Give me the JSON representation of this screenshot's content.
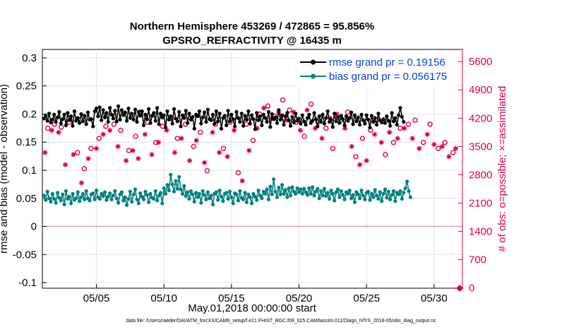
{
  "chart_data": {
    "type": "line",
    "title_line1": "Northern Hemisphere 453269 / 472865 = 95.856%",
    "title_line2": "GPSRO_REFRACTIVITY @ 16435 m",
    "xlabel": "May.01,2018 00:00:00 start",
    "ylabel_left": "rmse and bias (model - observation)",
    "ylabel_right": "# of obs: o=possible; ×=assimilated",
    "footer": "data file: /Users/raeder/DAI/ATM_forcXX/CAM6_setup/f.e21.FHIST_BGC.f09_025.CAM6assim.011/Diags_NTrS_2018-05/obs_diag_output.nc",
    "x_range_days": [
      1.0,
      32.1
    ],
    "x_ticks": [
      {
        "day": 5,
        "label": "05/05"
      },
      {
        "day": 10,
        "label": "05/10"
      },
      {
        "day": 15,
        "label": "05/15"
      },
      {
        "day": 20,
        "label": "05/20"
      },
      {
        "day": 25,
        "label": "05/25"
      },
      {
        "day": 30,
        "label": "05/30"
      }
    ],
    "ylim_left": [
      -0.11,
      0.315
    ],
    "y_ticks_left": [
      "0.3",
      "0.25",
      "0.2",
      "0.15",
      "0.1",
      "0.05",
      "0",
      "-0.05",
      "-0.1"
    ],
    "ylim_right": [
      -5,
      5900
    ],
    "y_ticks_right": [
      "5600",
      "4900",
      "4200",
      "3500",
      "2800",
      "2100",
      "1400",
      "700",
      "0"
    ],
    "legend": [
      {
        "name": "rmse grand pr = 0.19156",
        "color": "#000000"
      },
      {
        "name": "bias grand pr = 0.056175",
        "color": "#008080"
      }
    ],
    "series": [
      {
        "name": "rmse",
        "color": "#000000",
        "values": [
          0.192,
          0.197,
          0.188,
          0.201,
          0.185,
          0.19,
          0.199,
          0.186,
          0.194,
          0.204,
          0.183,
          0.191,
          0.199,
          0.18,
          0.202,
          0.189,
          0.196,
          0.179,
          0.205,
          0.188,
          0.193,
          0.184,
          0.2,
          0.187,
          0.197,
          0.182,
          0.203,
          0.19,
          0.191,
          0.178,
          0.205,
          0.21,
          0.196,
          0.212,
          0.189,
          0.207,
          0.194,
          0.202,
          0.186,
          0.211,
          0.199,
          0.192,
          0.206,
          0.187,
          0.214,
          0.19,
          0.207,
          0.198,
          0.203,
          0.188,
          0.21,
          0.193,
          0.201,
          0.19,
          0.208,
          0.186,
          0.204,
          0.197,
          0.205,
          0.18,
          0.199,
          0.191,
          0.209,
          0.184,
          0.197,
          0.202,
          0.188,
          0.211,
          0.182,
          0.201,
          0.194,
          0.198,
          0.176,
          0.205,
          0.19,
          0.196,
          0.183,
          0.209,
          0.192,
          0.187,
          0.204,
          0.178,
          0.198,
          0.193,
          0.206,
          0.184,
          0.201,
          0.19,
          0.195,
          0.174,
          0.199,
          0.196,
          0.205,
          0.183,
          0.194,
          0.203,
          0.186,
          0.208,
          0.191,
          0.189,
          0.199,
          0.183,
          0.205,
          0.187,
          0.201,
          0.174,
          0.193,
          0.197,
          0.18,
          0.206,
          0.187,
          0.199,
          0.191,
          0.178,
          0.204,
          0.193,
          0.186,
          0.201,
          0.179,
          0.197,
          0.19,
          0.205,
          0.183,
          0.198,
          0.191,
          0.173,
          0.202,
          0.189,
          0.196,
          0.18,
          0.199,
          0.193,
          0.186,
          0.204,
          0.177,
          0.2,
          0.191,
          0.194,
          0.184,
          0.207,
          0.19,
          0.198,
          0.181,
          0.196,
          0.202,
          0.189,
          0.179,
          0.195,
          0.185,
          0.201,
          0.188,
          0.192,
          0.183,
          0.198,
          0.187,
          0.181,
          0.193,
          0.199,
          0.184,
          0.188,
          0.202,
          0.191,
          0.178,
          0.196,
          0.186,
          0.199,
          0.183,
          0.193,
          0.205,
          0.186,
          0.19,
          0.177,
          0.201,
          0.187,
          0.195,
          0.184,
          0.197,
          0.191,
          0.18,
          0.196,
          0.188,
          0.193,
          0.203,
          0.182,
          0.198,
          0.187,
          0.194,
          0.181,
          0.199,
          0.189,
          0.183,
          0.198,
          0.19,
          0.176,
          0.197,
          0.186,
          0.193,
          0.181,
          0.201,
          0.189,
          0.185,
          0.191,
          0.184,
          0.196,
          0.188,
          0.179,
          0.202,
          0.187,
          0.193,
          0.181,
          0.198,
          0.211,
          0.195,
          0.186
        ]
      },
      {
        "name": "bias",
        "color": "#008080",
        "values": [
          0.055,
          0.047,
          0.062,
          0.05,
          0.044,
          0.058,
          0.049,
          0.042,
          0.06,
          0.051,
          0.046,
          0.057,
          0.039,
          0.063,
          0.049,
          0.053,
          0.041,
          0.058,
          0.047,
          0.05,
          0.061,
          0.045,
          0.052,
          0.058,
          0.048,
          0.063,
          0.05,
          0.046,
          0.057,
          0.059,
          0.048,
          0.064,
          0.052,
          0.049,
          0.058,
          0.054,
          0.061,
          0.047,
          0.053,
          0.059,
          0.048,
          0.055,
          0.063,
          0.05,
          0.042,
          0.057,
          0.061,
          0.046,
          0.052,
          0.038,
          0.049,
          0.062,
          0.044,
          0.057,
          0.066,
          0.048,
          0.041,
          0.059,
          0.053,
          0.048,
          0.062,
          0.056,
          0.043,
          0.058,
          0.051,
          0.049,
          0.063,
          0.046,
          0.055,
          0.06,
          0.041,
          0.068,
          0.058,
          0.074,
          0.064,
          0.092,
          0.075,
          0.062,
          0.081,
          0.067,
          0.088,
          0.066,
          0.058,
          0.072,
          0.054,
          0.061,
          0.049,
          0.063,
          0.057,
          0.044,
          0.06,
          0.052,
          0.058,
          0.042,
          0.063,
          0.056,
          0.048,
          0.061,
          0.05,
          0.055,
          0.039,
          0.058,
          0.061,
          0.047,
          0.064,
          0.053,
          0.045,
          0.058,
          0.06,
          0.049,
          0.062,
          0.052,
          0.041,
          0.059,
          0.057,
          0.046,
          0.063,
          0.051,
          0.048,
          0.06,
          0.043,
          0.057,
          0.052,
          0.041,
          0.058,
          0.053,
          0.047,
          0.064,
          0.055,
          0.05,
          0.062,
          0.058,
          0.066,
          0.048,
          0.071,
          0.057,
          0.084,
          0.062,
          0.052,
          0.069,
          0.057,
          0.074,
          0.058,
          0.065,
          0.052,
          0.068,
          0.055,
          0.07,
          0.062,
          0.058,
          0.068,
          0.061,
          0.066,
          0.058,
          0.067,
          0.061,
          0.056,
          0.068,
          0.058,
          0.07,
          0.055,
          0.062,
          0.067,
          0.05,
          0.063,
          0.055,
          0.067,
          0.054,
          0.06,
          0.049,
          0.064,
          0.058,
          0.046,
          0.061,
          0.066,
          0.052,
          0.063,
          0.056,
          0.048,
          0.061,
          0.058,
          0.064,
          0.05,
          0.056,
          0.043,
          0.061,
          0.057,
          0.05,
          0.064,
          0.055,
          0.048,
          0.06,
          0.062,
          0.047,
          0.058,
          0.052,
          0.065,
          0.055,
          0.049,
          0.061,
          0.045,
          0.058,
          0.066,
          0.051,
          0.062,
          0.048,
          0.056,
          0.063,
          0.045,
          0.06,
          0.057,
          0.063,
          0.049,
          0.06,
          0.068,
          0.08,
          0.063,
          0.052
        ]
      }
    ],
    "obs_possible": {
      "name": "# of obs possible",
      "marker": "o",
      "color": "#d6004c",
      "points": [
        [
          1.4,
          3950
        ],
        [
          1.9,
          4050
        ],
        [
          2.4,
          3980
        ],
        [
          3.0,
          4100
        ],
        [
          3.6,
          3350
        ],
        [
          4.1,
          2950
        ],
        [
          4.6,
          3450
        ],
        [
          5.2,
          3700
        ],
        [
          5.7,
          4000
        ],
        [
          6.3,
          4050
        ],
        [
          6.8,
          3900
        ],
        [
          7.4,
          3400
        ],
        [
          7.9,
          3750
        ],
        [
          8.3,
          4350
        ],
        [
          8.8,
          4100
        ],
        [
          9.4,
          3600
        ],
        [
          9.9,
          4000
        ],
        [
          10.5,
          4200
        ],
        [
          11.0,
          3700
        ],
        [
          11.6,
          4050
        ],
        [
          12.2,
          3500
        ],
        [
          12.7,
          3850
        ],
        [
          13.2,
          2900
        ],
        [
          13.8,
          4050
        ],
        [
          14.4,
          3450
        ],
        [
          14.9,
          4100
        ],
        [
          15.5,
          2850
        ],
        [
          16.1,
          4050
        ],
        [
          16.6,
          3650
        ],
        [
          17.1,
          4300
        ],
        [
          17.7,
          4500
        ],
        [
          18.2,
          4250
        ],
        [
          18.8,
          4650
        ],
        [
          19.3,
          4400
        ],
        [
          19.8,
          4100
        ],
        [
          20.4,
          3750
        ],
        [
          20.9,
          4550
        ],
        [
          21.4,
          4100
        ],
        [
          22.0,
          3950
        ],
        [
          22.5,
          3450
        ],
        [
          23.1,
          4150
        ],
        [
          23.6,
          4350
        ],
        [
          24.2,
          3250
        ],
        [
          24.7,
          3700
        ],
        [
          25.3,
          3900
        ],
        [
          25.8,
          4150
        ],
        [
          26.4,
          3300
        ],
        [
          27.0,
          3600
        ],
        [
          27.5,
          3950
        ],
        [
          28.1,
          4050
        ],
        [
          28.6,
          4150
        ],
        [
          29.2,
          3600
        ],
        [
          29.7,
          4050
        ],
        [
          30.3,
          3450
        ],
        [
          30.8,
          3600
        ],
        [
          31.4,
          3350
        ],
        [
          31.9,
          -5
        ]
      ]
    },
    "obs_assimilated": {
      "name": "# of obs assimilated",
      "marker": "×",
      "color": "#d6004c",
      "points": [
        [
          1.2,
          3350
        ],
        [
          1.7,
          3900
        ],
        [
          2.2,
          3850
        ],
        [
          2.7,
          3050
        ],
        [
          3.3,
          3300
        ],
        [
          3.9,
          2600
        ],
        [
          4.4,
          3200
        ],
        [
          5.0,
          3450
        ],
        [
          5.5,
          3800
        ],
        [
          6.0,
          3900
        ],
        [
          6.6,
          3500
        ],
        [
          7.2,
          3150
        ],
        [
          7.7,
          3400
        ],
        [
          8.1,
          3200
        ],
        [
          8.6,
          3800
        ],
        [
          9.1,
          3300
        ],
        [
          9.6,
          3600
        ],
        [
          10.2,
          3900
        ],
        [
          10.8,
          3350
        ],
        [
          11.3,
          3700
        ],
        [
          11.9,
          3150
        ],
        [
          12.4,
          3650
        ],
        [
          13.0,
          3100
        ],
        [
          13.6,
          3850
        ],
        [
          14.1,
          3350
        ],
        [
          14.7,
          3250
        ],
        [
          15.2,
          3900
        ],
        [
          15.8,
          2650
        ],
        [
          16.3,
          3400
        ],
        [
          16.9,
          3950
        ],
        [
          17.4,
          4450
        ],
        [
          18.0,
          4200
        ],
        [
          18.5,
          4350
        ],
        [
          19.1,
          4150
        ],
        [
          19.6,
          4350
        ],
        [
          20.1,
          3900
        ],
        [
          20.6,
          4400
        ],
        [
          21.2,
          3950
        ],
        [
          21.7,
          3700
        ],
        [
          22.3,
          4200
        ],
        [
          22.8,
          4300
        ],
        [
          23.4,
          3950
        ],
        [
          23.9,
          3500
        ],
        [
          24.5,
          3050
        ],
        [
          25.0,
          3150
        ],
        [
          25.6,
          3800
        ],
        [
          26.1,
          3600
        ],
        [
          26.7,
          3850
        ],
        [
          27.3,
          3700
        ],
        [
          27.8,
          3950
        ],
        [
          28.4,
          3700
        ],
        [
          28.9,
          3450
        ],
        [
          29.5,
          3800
        ],
        [
          30.0,
          3550
        ],
        [
          30.6,
          3500
        ],
        [
          31.1,
          3250
        ],
        [
          31.6,
          3450
        ]
      ]
    }
  }
}
